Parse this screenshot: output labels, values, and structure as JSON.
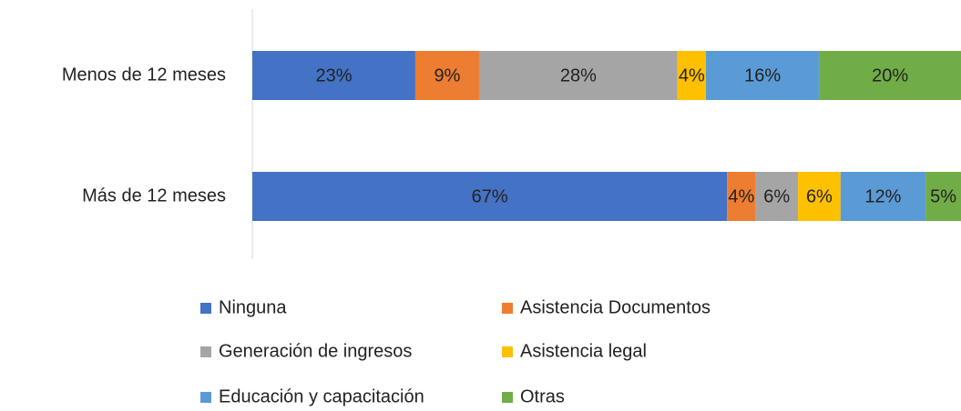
{
  "chart_data": {
    "type": "stacked_bar_horizontal",
    "categories": [
      "Menos de 12 meses",
      "Más de 12 meses"
    ],
    "series": [
      {
        "name": "Ninguna",
        "color": "#4472c4",
        "values": [
          23,
          67
        ],
        "value_labels": [
          "23%",
          "67%"
        ]
      },
      {
        "name": "Asistencia Documentos",
        "color": "#ed7d31",
        "values": [
          9,
          4
        ],
        "value_labels": [
          "9%",
          "4%"
        ]
      },
      {
        "name": "Generación de ingresos",
        "color": "#a5a5a5",
        "values": [
          28,
          6
        ],
        "value_labels": [
          "28%",
          "6%"
        ]
      },
      {
        "name": "Asistencia legal",
        "color": "#ffc000",
        "values": [
          4,
          6
        ],
        "value_labels": [
          "4%",
          "6%"
        ]
      },
      {
        "name": "Educación y capacitación",
        "color": "#5b9bd5",
        "values": [
          16,
          12
        ],
        "value_labels": [
          "16%",
          "12%"
        ]
      },
      {
        "name": "Otras",
        "color": "#70ad47",
        "values": [
          20,
          5
        ],
        "value_labels": [
          "20%",
          "5%"
        ]
      }
    ]
  }
}
